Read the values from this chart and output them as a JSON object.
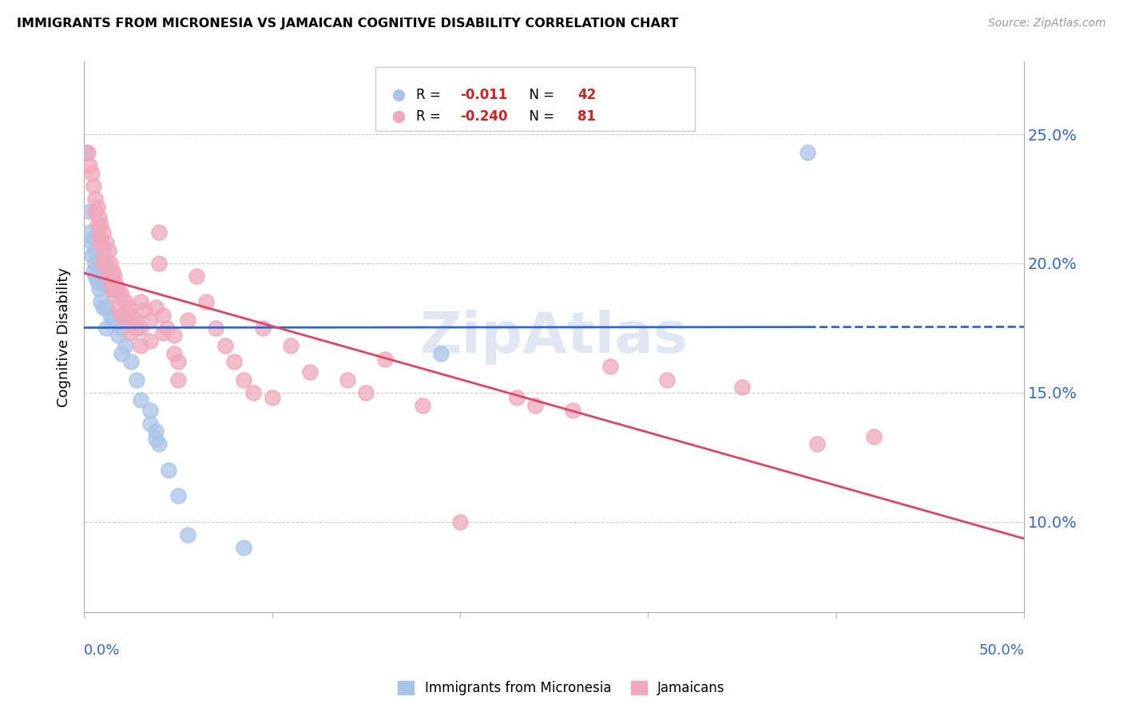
{
  "title": "IMMIGRANTS FROM MICRONESIA VS JAMAICAN COGNITIVE DISABILITY CORRELATION CHART",
  "source": "Source: ZipAtlas.com",
  "ylabel": "Cognitive Disability",
  "y_tick_labels": [
    "10.0%",
    "15.0%",
    "20.0%",
    "25.0%"
  ],
  "y_tick_values": [
    0.1,
    0.15,
    0.2,
    0.25
  ],
  "x_lim": [
    0.0,
    0.5
  ],
  "y_lim": [
    0.065,
    0.278
  ],
  "legend_blue_label": "Immigrants from Micronesia",
  "legend_pink_label": "Jamaicans",
  "blue_color": "#aac4e8",
  "pink_color": "#f0a8bc",
  "trend_blue_color": "#3366cc",
  "trend_pink_color": "#dd4466",
  "watermark": "ZipAtlas",
  "blue_points": [
    [
      0.001,
      0.243
    ],
    [
      0.003,
      0.22
    ],
    [
      0.003,
      0.212
    ],
    [
      0.004,
      0.208
    ],
    [
      0.004,
      0.203
    ],
    [
      0.005,
      0.21
    ],
    [
      0.005,
      0.197
    ],
    [
      0.006,
      0.205
    ],
    [
      0.006,
      0.2
    ],
    [
      0.006,
      0.195
    ],
    [
      0.007,
      0.198
    ],
    [
      0.007,
      0.193
    ],
    [
      0.008,
      0.2
    ],
    [
      0.008,
      0.19
    ],
    [
      0.009,
      0.195
    ],
    [
      0.009,
      0.185
    ],
    [
      0.01,
      0.192
    ],
    [
      0.01,
      0.183
    ],
    [
      0.012,
      0.183
    ],
    [
      0.012,
      0.175
    ],
    [
      0.014,
      0.19
    ],
    [
      0.014,
      0.18
    ],
    [
      0.015,
      0.178
    ],
    [
      0.018,
      0.172
    ],
    [
      0.02,
      0.175
    ],
    [
      0.02,
      0.165
    ],
    [
      0.022,
      0.168
    ],
    [
      0.025,
      0.162
    ],
    [
      0.028,
      0.155
    ],
    [
      0.03,
      0.147
    ],
    [
      0.035,
      0.143
    ],
    [
      0.035,
      0.138
    ],
    [
      0.038,
      0.135
    ],
    [
      0.038,
      0.132
    ],
    [
      0.04,
      0.13
    ],
    [
      0.045,
      0.12
    ],
    [
      0.05,
      0.11
    ],
    [
      0.055,
      0.095
    ],
    [
      0.085,
      0.09
    ],
    [
      0.19,
      0.165
    ],
    [
      0.385,
      0.243
    ]
  ],
  "pink_points": [
    [
      0.002,
      0.243
    ],
    [
      0.003,
      0.238
    ],
    [
      0.004,
      0.235
    ],
    [
      0.005,
      0.23
    ],
    [
      0.006,
      0.225
    ],
    [
      0.006,
      0.22
    ],
    [
      0.007,
      0.222
    ],
    [
      0.007,
      0.215
    ],
    [
      0.008,
      0.218
    ],
    [
      0.008,
      0.21
    ],
    [
      0.009,
      0.215
    ],
    [
      0.009,
      0.208
    ],
    [
      0.01,
      0.212
    ],
    [
      0.01,
      0.205
    ],
    [
      0.01,
      0.2
    ],
    [
      0.012,
      0.208
    ],
    [
      0.012,
      0.2
    ],
    [
      0.013,
      0.205
    ],
    [
      0.013,
      0.197
    ],
    [
      0.014,
      0.2
    ],
    [
      0.014,
      0.193
    ],
    [
      0.015,
      0.197
    ],
    [
      0.015,
      0.19
    ],
    [
      0.016,
      0.195
    ],
    [
      0.016,
      0.188
    ],
    [
      0.017,
      0.192
    ],
    [
      0.018,
      0.19
    ],
    [
      0.018,
      0.183
    ],
    [
      0.02,
      0.188
    ],
    [
      0.02,
      0.18
    ],
    [
      0.022,
      0.185
    ],
    [
      0.022,
      0.178
    ],
    [
      0.024,
      0.183
    ],
    [
      0.025,
      0.18
    ],
    [
      0.025,
      0.173
    ],
    [
      0.027,
      0.178
    ],
    [
      0.028,
      0.175
    ],
    [
      0.03,
      0.185
    ],
    [
      0.03,
      0.175
    ],
    [
      0.03,
      0.168
    ],
    [
      0.032,
      0.182
    ],
    [
      0.035,
      0.178
    ],
    [
      0.035,
      0.17
    ],
    [
      0.038,
      0.183
    ],
    [
      0.04,
      0.212
    ],
    [
      0.04,
      0.2
    ],
    [
      0.042,
      0.18
    ],
    [
      0.042,
      0.173
    ],
    [
      0.044,
      0.175
    ],
    [
      0.048,
      0.172
    ],
    [
      0.048,
      0.165
    ],
    [
      0.05,
      0.162
    ],
    [
      0.05,
      0.155
    ],
    [
      0.055,
      0.178
    ],
    [
      0.06,
      0.195
    ],
    [
      0.065,
      0.185
    ],
    [
      0.07,
      0.175
    ],
    [
      0.075,
      0.168
    ],
    [
      0.08,
      0.162
    ],
    [
      0.085,
      0.155
    ],
    [
      0.09,
      0.15
    ],
    [
      0.095,
      0.175
    ],
    [
      0.1,
      0.148
    ],
    [
      0.11,
      0.168
    ],
    [
      0.12,
      0.158
    ],
    [
      0.14,
      0.155
    ],
    [
      0.15,
      0.15
    ],
    [
      0.16,
      0.163
    ],
    [
      0.18,
      0.145
    ],
    [
      0.2,
      0.1
    ],
    [
      0.23,
      0.148
    ],
    [
      0.24,
      0.145
    ],
    [
      0.26,
      0.143
    ],
    [
      0.28,
      0.16
    ],
    [
      0.31,
      0.155
    ],
    [
      0.35,
      0.152
    ],
    [
      0.39,
      0.13
    ],
    [
      0.42,
      0.133
    ]
  ]
}
